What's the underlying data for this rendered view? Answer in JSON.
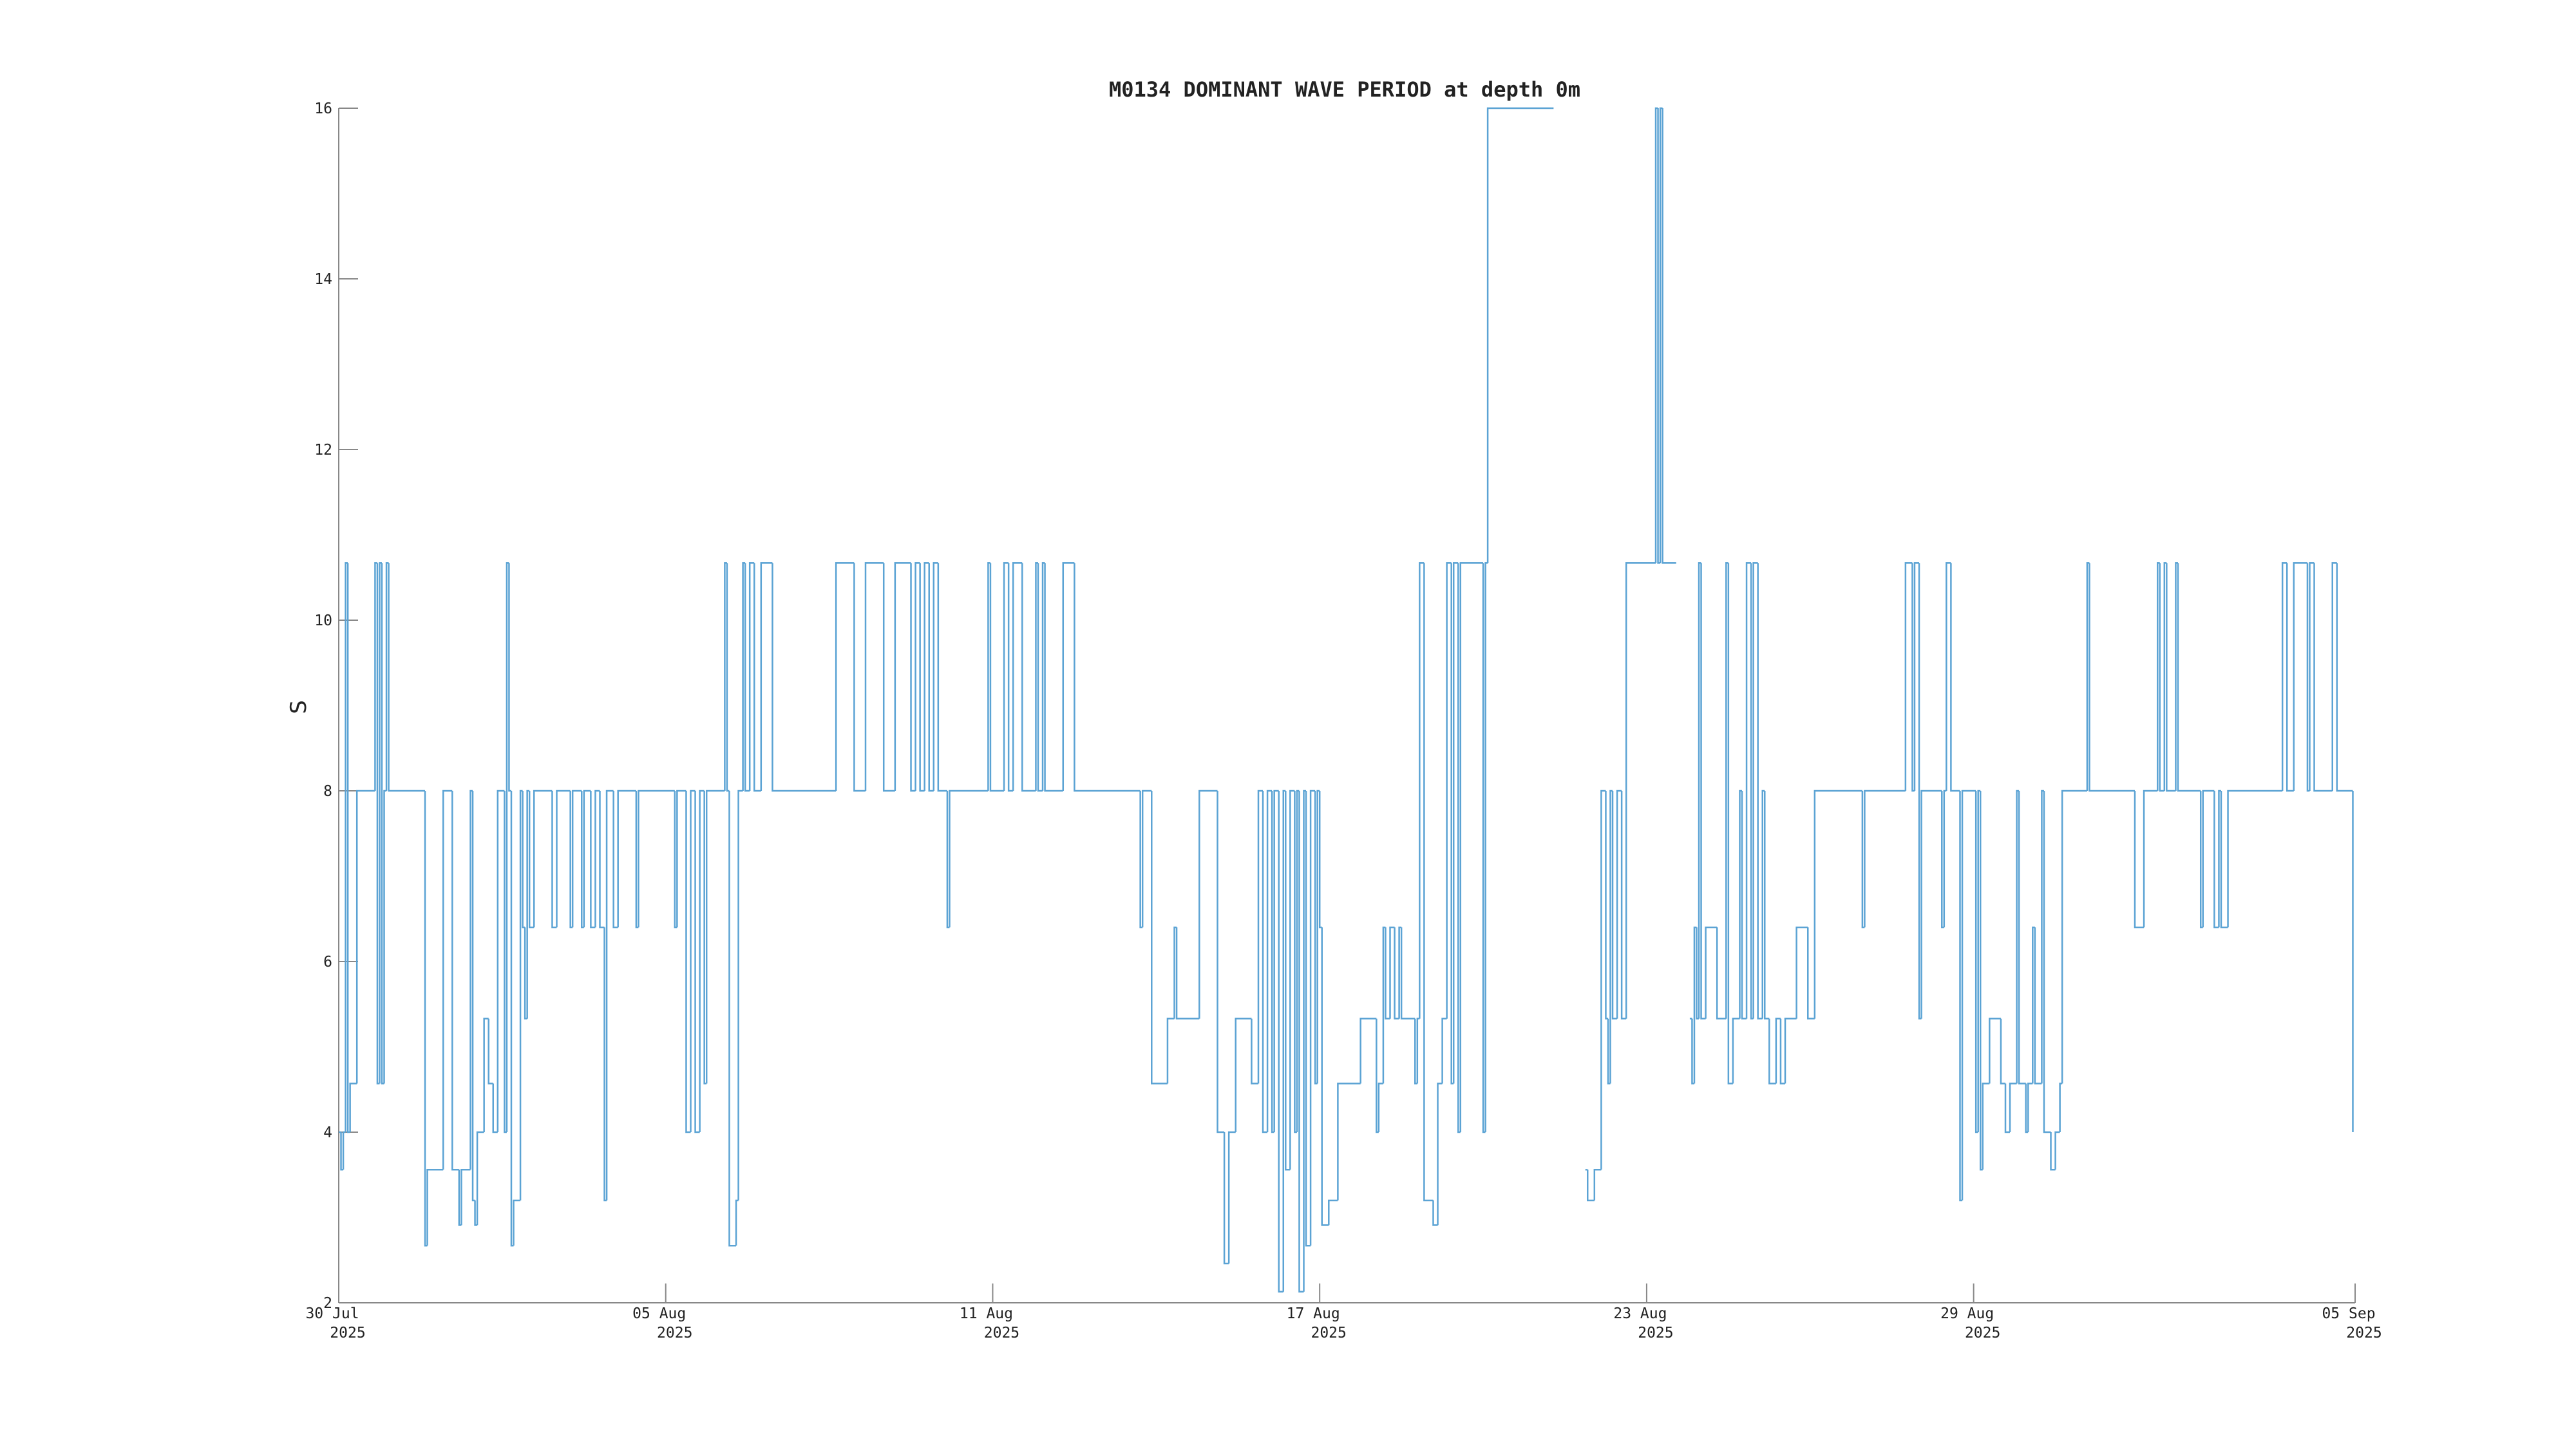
{
  "chart_data": {
    "type": "line",
    "drawstyle": "steps-post",
    "title": "M0134 DOMINANT WAVE PERIOD at depth 0m",
    "ylabel": "S",
    "xlim": [
      "2025-07-30",
      "2025-09-05"
    ],
    "xticks": [
      {
        "value": "2025-07-30",
        "label": "30 Jul 2025"
      },
      {
        "value": "2025-08-05",
        "label": "05 Aug 2025"
      },
      {
        "value": "2025-08-11",
        "label": "11 Aug 2025"
      },
      {
        "value": "2025-08-17",
        "label": "17 Aug 2025"
      },
      {
        "value": "2025-08-23",
        "label": "23 Aug 2025"
      },
      {
        "value": "2025-08-29",
        "label": "29 Aug 2025"
      },
      {
        "value": "2025-09-05",
        "label": "05 Sep 2025"
      }
    ],
    "ylim": [
      2,
      16
    ],
    "yticks": [
      2,
      4,
      6,
      8,
      10,
      12,
      14,
      16
    ],
    "grid": false,
    "series": [
      {
        "color": "#5ba3d4",
        "x": [
          "2025-07-30 00:00",
          "2025-07-30 01:00",
          "2025-07-30 02:00",
          "2025-07-30 03:00",
          "2025-07-30 04:00",
          "2025-07-30 05:00",
          "2025-07-30 08:00",
          "2025-07-30 16:00",
          "2025-07-30 17:00",
          "2025-07-30 18:00",
          "2025-07-30 19:00",
          "2025-07-30 20:00",
          "2025-07-30 21:00",
          "2025-07-30 22:00",
          "2025-07-31 14:00",
          "2025-07-31 15:00",
          "2025-07-31 22:00",
          "2025-08-01 02:00",
          "2025-08-01 05:00",
          "2025-08-01 06:00",
          "2025-08-01 10:00",
          "2025-08-01 11:00",
          "2025-08-01 12:00",
          "2025-08-01 13:00",
          "2025-08-01 16:00",
          "2025-08-01 18:00",
          "2025-08-01 20:00",
          "2025-08-01 22:00",
          "2025-08-02 01:00",
          "2025-08-02 02:00",
          "2025-08-02 03:00",
          "2025-08-02 04:00",
          "2025-08-02 05:00",
          "2025-08-02 08:00",
          "2025-08-02 09:00",
          "2025-08-02 10:00",
          "2025-08-02 11:00",
          "2025-08-02 12:00",
          "2025-08-02 14:00",
          "2025-08-02 22:00",
          "2025-08-03 00:00",
          "2025-08-03 06:00",
          "2025-08-03 07:00",
          "2025-08-03 11:00",
          "2025-08-03 12:00",
          "2025-08-03 15:00",
          "2025-08-03 17:00",
          "2025-08-03 19:00",
          "2025-08-03 21:00",
          "2025-08-03 22:00",
          "2025-08-04 01:00",
          "2025-08-04 03:00",
          "2025-08-04 11:00",
          "2025-08-04 12:00",
          "2025-08-05 04:00",
          "2025-08-05 05:00",
          "2025-08-05 09:00",
          "2025-08-05 11:00",
          "2025-08-05 13:00",
          "2025-08-05 15:00",
          "2025-08-05 17:00",
          "2025-08-05 18:00",
          "2025-08-06 02:00",
          "2025-08-06 03:00",
          "2025-08-06 04:00",
          "2025-08-06 07:00",
          "2025-08-06 08:00",
          "2025-08-06 10:00",
          "2025-08-06 11:00",
          "2025-08-06 13:00",
          "2025-08-06 15:00",
          "2025-08-06 18:00",
          "2025-08-06 23:00",
          "2025-08-08 03:00",
          "2025-08-08 11:00",
          "2025-08-08 16:00",
          "2025-08-09 00:00",
          "2025-08-09 05:00",
          "2025-08-09 12:00",
          "2025-08-09 14:00",
          "2025-08-09 16:00",
          "2025-08-09 18:00",
          "2025-08-09 20:00",
          "2025-08-09 22:00",
          "2025-08-10 00:00",
          "2025-08-10 04:00",
          "2025-08-10 05:00",
          "2025-08-10 22:00",
          "2025-08-10 23:00",
          "2025-08-11 05:00",
          "2025-08-11 07:00",
          "2025-08-11 09:00",
          "2025-08-11 13:00",
          "2025-08-11 19:00",
          "2025-08-11 20:00",
          "2025-08-11 22:00",
          "2025-08-11 23:00",
          "2025-08-12 07:00",
          "2025-08-12 12:00",
          "2025-08-13 17:00",
          "2025-08-13 18:00",
          "2025-08-13 22:00",
          "2025-08-14 05:00",
          "2025-08-14 08:00",
          "2025-08-14 09:00",
          "2025-08-14 19:00",
          "2025-08-15 03:00",
          "2025-08-15 06:00",
          "2025-08-15 08:00",
          "2025-08-15 11:00",
          "2025-08-15 18:00",
          "2025-08-15 21:00",
          "2025-08-15 23:00",
          "2025-08-16 01:00",
          "2025-08-16 03:00",
          "2025-08-16 04:00",
          "2025-08-16 06:00",
          "2025-08-16 08:00",
          "2025-08-16 09:00",
          "2025-08-16 11:00",
          "2025-08-16 13:00",
          "2025-08-16 14:00",
          "2025-08-16 15:00",
          "2025-08-16 17:00",
          "2025-08-16 18:00",
          "2025-08-16 20:00",
          "2025-08-16 22:00",
          "2025-08-16 23:00",
          "2025-08-17 00:00",
          "2025-08-17 01:00",
          "2025-08-17 04:00",
          "2025-08-17 08:00",
          "2025-08-17 18:00",
          "2025-08-18 01:00",
          "2025-08-18 02:00",
          "2025-08-18 04:00",
          "2025-08-18 05:00",
          "2025-08-18 07:00",
          "2025-08-18 09:00",
          "2025-08-18 11:00",
          "2025-08-18 12:00",
          "2025-08-18 18:00",
          "2025-08-18 19:00",
          "2025-08-18 20:00",
          "2025-08-18 22:00",
          "2025-08-19 02:00",
          "2025-08-19 04:00",
          "2025-08-19 06:00",
          "2025-08-19 08:00",
          "2025-08-19 10:00",
          "2025-08-19 11:00",
          "2025-08-19 13:00",
          "2025-08-19 14:00",
          "2025-08-20 00:00",
          "2025-08-20 01:00",
          "2025-08-20 02:00",
          "2025-08-21 06:00",
          "2025-08-21 07:00",
          "2025-08-21 21:00",
          "2025-08-21 22:00",
          "2025-08-22 01:00",
          "2025-08-22 04:00",
          "2025-08-22 06:00",
          "2025-08-22 07:00",
          "2025-08-22 08:00",
          "2025-08-22 09:00",
          "2025-08-22 11:00",
          "2025-08-22 13:00",
          "2025-08-22 15:00",
          "2025-08-23 04:00",
          "2025-08-23 05:00",
          "2025-08-23 06:00",
          "2025-08-23 07:00",
          "2025-08-23 13:00",
          "2025-08-23 19:00",
          "2025-08-23 20:00",
          "2025-08-23 21:00",
          "2025-08-23 22:00",
          "2025-08-23 23:00",
          "2025-08-24 00:00",
          "2025-08-24 02:00",
          "2025-08-24 07:00",
          "2025-08-24 11:00",
          "2025-08-24 12:00",
          "2025-08-24 14:00",
          "2025-08-24 17:00",
          "2025-08-24 18:00",
          "2025-08-24 20:00",
          "2025-08-24 22:00",
          "2025-08-24 23:00",
          "2025-08-25 01:00",
          "2025-08-25 03:00",
          "2025-08-25 04:00",
          "2025-08-25 06:00",
          "2025-08-25 09:00",
          "2025-08-25 11:00",
          "2025-08-25 13:00",
          "2025-08-25 18:00",
          "2025-08-25 23:00",
          "2025-08-26 02:00",
          "2025-08-26 23:00",
          "2025-08-27 00:00",
          "2025-08-27 18:00",
          "2025-08-27 21:00",
          "2025-08-27 22:00",
          "2025-08-28 00:00",
          "2025-08-28 01:00",
          "2025-08-28 10:00",
          "2025-08-28 11:00",
          "2025-08-28 12:00",
          "2025-08-28 14:00",
          "2025-08-28 18:00",
          "2025-08-28 19:00",
          "2025-08-29 01:00",
          "2025-08-29 02:00",
          "2025-08-29 03:00",
          "2025-08-29 04:00",
          "2025-08-29 07:00",
          "2025-08-29 12:00",
          "2025-08-29 14:00",
          "2025-08-29 16:00",
          "2025-08-29 19:00",
          "2025-08-29 20:00",
          "2025-08-29 23:00",
          "2025-08-30 00:00",
          "2025-08-30 02:00",
          "2025-08-30 03:00",
          "2025-08-30 06:00",
          "2025-08-30 07:00",
          "2025-08-30 10:00",
          "2025-08-30 12:00",
          "2025-08-30 14:00",
          "2025-08-30 15:00",
          "2025-08-31 02:00",
          "2025-08-31 03:00",
          "2025-08-31 23:00",
          "2025-09-01 03:00",
          "2025-09-01 09:00",
          "2025-09-01 10:00",
          "2025-09-01 12:00",
          "2025-09-01 13:00",
          "2025-09-01 17:00",
          "2025-09-01 18:00",
          "2025-09-02 04:00",
          "2025-09-02 05:00",
          "2025-09-02 10:00",
          "2025-09-02 12:00",
          "2025-09-02 13:00",
          "2025-09-02 16:00",
          "2025-09-03 16:00",
          "2025-09-03 18:00",
          "2025-09-03 21:00",
          "2025-09-04 03:00",
          "2025-09-04 04:00",
          "2025-09-04 06:00",
          "2025-09-04 14:00",
          "2025-09-04 16:00",
          "2025-09-04 23:00"
        ],
        "values": [
          4,
          3.56,
          4,
          10.67,
          4,
          4.57,
          8,
          10.67,
          4.57,
          10.67,
          4.57,
          8,
          10.67,
          8,
          2.67,
          3.56,
          8,
          3.56,
          2.91,
          3.56,
          8,
          3.2,
          2.91,
          4,
          5.33,
          4.57,
          4,
          8,
          4,
          10.67,
          8,
          2.67,
          3.2,
          8,
          6.4,
          5.33,
          8,
          6.4,
          8,
          6.4,
          8,
          6.4,
          8,
          6.4,
          8,
          6.4,
          8,
          6.4,
          3.2,
          8,
          6.4,
          8,
          6.4,
          8,
          6.4,
          8,
          4,
          8,
          4,
          8,
          4.57,
          8,
          10.67,
          8,
          2.67,
          3.2,
          8,
          10.67,
          8,
          10.67,
          8,
          10.67,
          8,
          10.67,
          8,
          10.67,
          8,
          10.67,
          8,
          10.67,
          8,
          10.67,
          8,
          10.67,
          8,
          6.4,
          8,
          10.67,
          8,
          10.67,
          8,
          10.67,
          8,
          10.67,
          8,
          10.67,
          8,
          10.67,
          8,
          6.4,
          8,
          4.57,
          5.33,
          6.4,
          5.33,
          8,
          4,
          2.46,
          4,
          5.33,
          4.57,
          8,
          4,
          8,
          4,
          8,
          2.13,
          8,
          3.56,
          8,
          4,
          8,
          2.13,
          8,
          2.67,
          8,
          4.57,
          8,
          6.4,
          2.91,
          3.2,
          4.57,
          5.33,
          4,
          4.57,
          6.4,
          5.33,
          6.4,
          5.33,
          6.4,
          5.33,
          4.57,
          5.33,
          10.67,
          3.2,
          2.91,
          4.57,
          5.33,
          10.67,
          4.57,
          10.67,
          4,
          10.67,
          4,
          10.67,
          16,
          16,
          null,
          3.56,
          3.2,
          3.56,
          8,
          5.33,
          4.57,
          8,
          5.33,
          8,
          5.33,
          10.67,
          16,
          10.67,
          16,
          10.67,
          null,
          5.33,
          4.57,
          6.4,
          5.33,
          10.67,
          5.33,
          6.4,
          5.33,
          10.67,
          4.57,
          5.33,
          8,
          5.33,
          10.67,
          5.33,
          10.67,
          5.33,
          8,
          5.33,
          4.57,
          5.33,
          4.57,
          5.33,
          6.4,
          5.33,
          8,
          6.4,
          8,
          10.67,
          8,
          10.67,
          5.33,
          8,
          6.4,
          8,
          10.67,
          8,
          3.2,
          8,
          4,
          8,
          3.56,
          4.57,
          5.33,
          4.57,
          4,
          4.57,
          8,
          4.57,
          4,
          4.57,
          6.4,
          4.57,
          8,
          4,
          3.56,
          4,
          4.57,
          8,
          10.67,
          8,
          6.4,
          8,
          10.67,
          8,
          10.67,
          8,
          10.67,
          8,
          6.4,
          8,
          6.4,
          8,
          6.4,
          8,
          10.67,
          8,
          10.67,
          8,
          10.67,
          8,
          10.67,
          8,
          4
        ]
      }
    ]
  }
}
